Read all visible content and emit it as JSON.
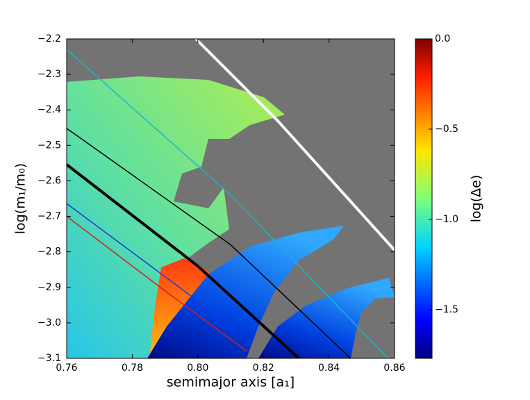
{
  "chart_data": {
    "type": "heatmap",
    "xlabel": "semimajor axis  [a₁]",
    "ylabel": "log(m₁/m₀)",
    "colorbar_label": "log(Δe)",
    "xlim": [
      0.76,
      0.86
    ],
    "xticks": [
      0.76,
      0.78,
      {
        "value": 0.8,
        "label": "0.80"
      },
      0.82,
      0.84,
      0.86
    ],
    "ylim": [
      -3.1,
      -2.2
    ],
    "yticks": [
      {
        "value": -2.2,
        "label": "−2.2"
      },
      {
        "value": -2.3,
        "label": "−2.3"
      },
      {
        "value": -2.4,
        "label": "−2.4"
      },
      {
        "value": -2.5,
        "label": "−2.5"
      },
      {
        "value": -2.6,
        "label": "−2.6"
      },
      {
        "value": -2.7,
        "label": "−2.7"
      },
      {
        "value": -2.8,
        "label": "−2.8"
      },
      {
        "value": -2.9,
        "label": "−2.9"
      },
      {
        "value": -3.0,
        "label": "−3.0"
      },
      {
        "value": -3.1,
        "label": "−3.1"
      }
    ],
    "clim": [
      -1.77,
      0
    ],
    "cticks": [
      {
        "value": 0,
        "label": "0.0"
      },
      {
        "value": -0.5,
        "label": "−0.5"
      },
      {
        "value": -1.0,
        "label": "−1.0"
      },
      {
        "value": -1.5,
        "label": "−1.5"
      }
    ],
    "background": "#737373",
    "series": [
      {
        "color": "#ffffff",
        "width": 4,
        "x": [
          0.7994,
          0.8244,
          0.86
        ],
        "values": [
          -2.2,
          -2.431,
          -2.795
        ]
      },
      {
        "color": "#1cb5c9",
        "width": 1.5,
        "x": [
          0.76,
          0.81,
          0.858
        ],
        "values": [
          -2.23,
          -2.64,
          -3.1
        ]
      },
      {
        "color": "#000000",
        "width": 1.5,
        "x": [
          0.76,
          0.81,
          0.8466
        ],
        "values": [
          -2.452,
          -2.78,
          -3.1
        ]
      },
      {
        "color": "#000000",
        "width": 4,
        "x": [
          0.76,
          0.8,
          0.8308
        ],
        "values": [
          -2.554,
          -2.84,
          -3.1
        ]
      },
      {
        "color": "#1a3ad8",
        "width": 1.5,
        "x": [
          0.76,
          0.79,
          0.8075
        ],
        "values": [
          -2.664,
          -2.87,
          -2.99
        ]
      },
      {
        "color": "#d02020",
        "width": 1.5,
        "x": [
          0.76,
          0.79,
          0.8149
        ],
        "values": [
          -2.7,
          -2.91,
          -3.08
        ]
      }
    ]
  }
}
